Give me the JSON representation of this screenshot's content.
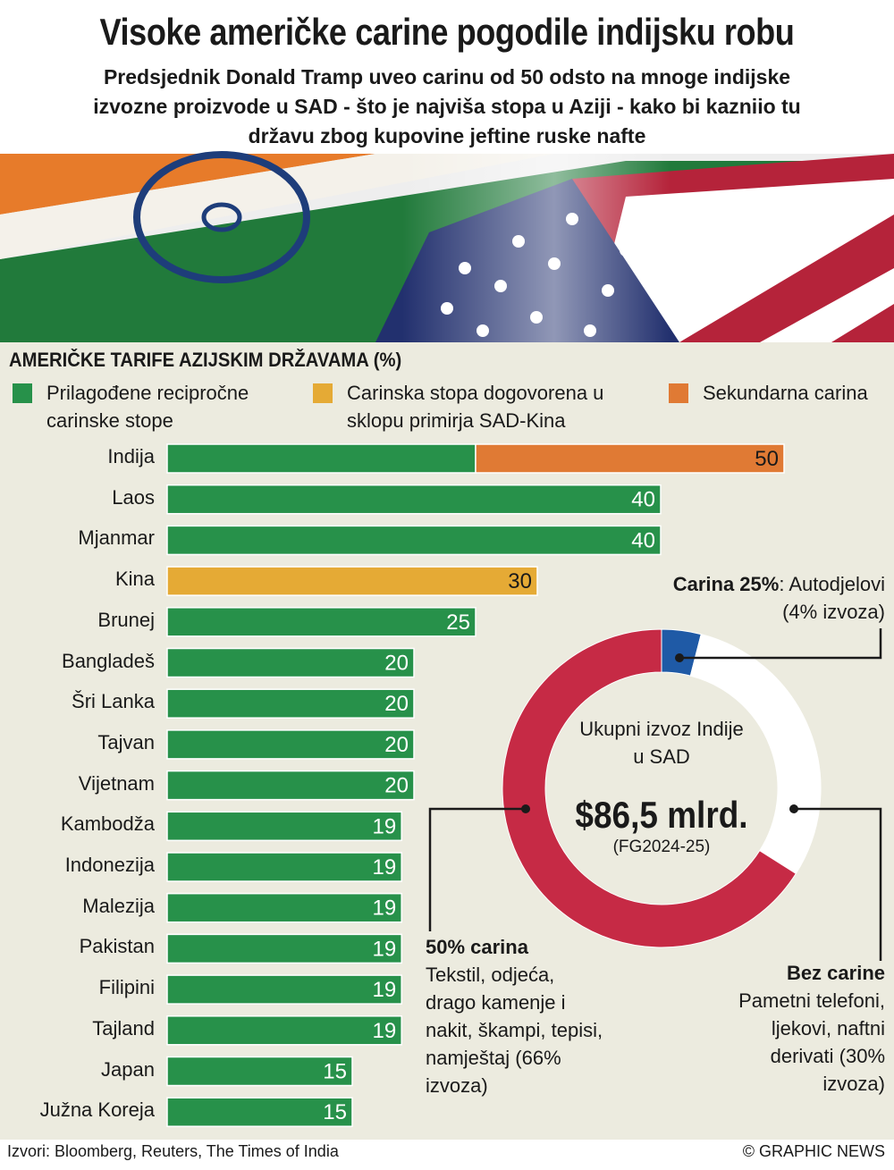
{
  "header": {
    "title": "Visoke američke carine pogodile indijsku robu",
    "subtitle": "Predsjednik Donald Tramp uveo carinu od 50 odsto na mnoge indijske izvozne proizvode  u SAD - što je najviša stopa u Aziji - kako bi  kazniio tu državu zbog kupovine jeftine ruske nafte"
  },
  "chart_data": [
    {
      "type": "bar",
      "orientation": "horizontal",
      "stacked": true,
      "title": "AMERIČKE TARIFE AZIJSKIM DRŽAVAMA  (%)",
      "categories": [
        "Indija",
        "Laos",
        "Mjanmar",
        "Kina",
        "Brunej",
        "Bangladeš",
        "Šri Lanka",
        "Tajvan",
        "Vijetnam",
        "Kambodža",
        "Indonezija",
        "Malezija",
        "Pakistan",
        "Filipini",
        "Tajland",
        "Japan",
        "Južna Koreja"
      ],
      "series": [
        {
          "name": "Prilagođene recipročne carinske stope",
          "color": "#27914a",
          "label_color": "#ffffff",
          "values": [
            25,
            40,
            40,
            null,
            25,
            20,
            20,
            20,
            20,
            19,
            19,
            19,
            19,
            19,
            19,
            15,
            15
          ]
        },
        {
          "name": "Carinska stopa dogovorena u sklopu primirja SAD-Kina",
          "color": "#e5aa35",
          "label_color": "#1a1a1a",
          "values": [
            null,
            null,
            null,
            30,
            null,
            null,
            null,
            null,
            null,
            null,
            null,
            null,
            null,
            null,
            null,
            null,
            null
          ]
        },
        {
          "name": "Sekundarna carina",
          "color": "#e07a34",
          "label_color": "#1a1a1a",
          "values": [
            25,
            null,
            null,
            null,
            null,
            null,
            null,
            null,
            null,
            null,
            null,
            null,
            null,
            null,
            null,
            null,
            null
          ]
        }
      ],
      "totals": [
        50,
        40,
        40,
        30,
        25,
        20,
        20,
        20,
        20,
        19,
        19,
        19,
        19,
        19,
        19,
        15,
        15
      ],
      "xlim": [
        0,
        50
      ]
    },
    {
      "type": "pie",
      "donut": true,
      "center_label": "Ukupni izvoz Indije u SAD",
      "center_value": "$86,5 mlrd.",
      "center_note": "(FG2024-25)",
      "categories": [
        "Carina 25%",
        "Bez carine",
        "50% carina"
      ],
      "descriptions": [
        "Autodjelovi",
        "Pametni telefoni, ljekovi, naftni derivati",
        "Tekstil, odjeća, drago kamenje i nakit, škampi, tepisi, namještaj"
      ],
      "values": [
        4,
        30,
        66
      ],
      "value_labels": [
        "(4% izvoza)",
        "(30% izvoza)",
        "(66% izvoza)"
      ],
      "colors": [
        "#1f5aa6",
        "#ffffff",
        "#c62a45"
      ]
    }
  ],
  "footer": {
    "source": "Izvori: Bloomberg, Reuters, The Times of India",
    "credit": "© GRAPHIC NEWS"
  }
}
